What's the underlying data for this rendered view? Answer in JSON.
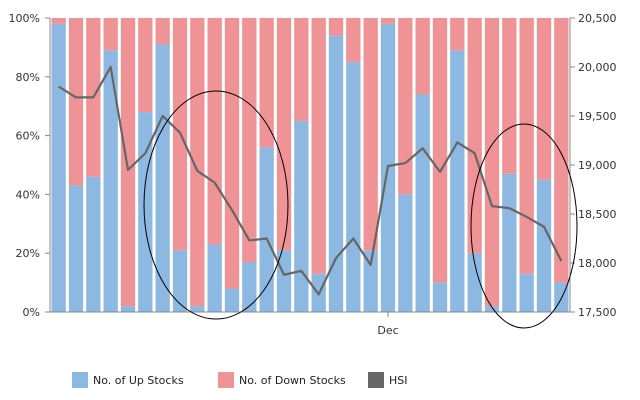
{
  "chart_data": {
    "type": "bar",
    "stacked_percent": true,
    "x": {
      "tick_labels": [
        "Dec"
      ],
      "tick_at_bar_index": 19
    },
    "y_left": {
      "ticks": [
        "0%",
        "20%",
        "40%",
        "60%",
        "80%",
        "100%"
      ],
      "ylim": [
        0,
        100
      ]
    },
    "y_right": {
      "ticks": [
        "17,500",
        "18,000",
        "18,500",
        "19,000",
        "19,500",
        "20,000",
        "20,500"
      ],
      "ylim": [
        17500,
        20500
      ]
    },
    "series": [
      {
        "name": "No. of Up Stocks",
        "color": "#8cb8e2",
        "axis": "left",
        "kind": "bar",
        "values": [
          98,
          43,
          46,
          89,
          2,
          68,
          91,
          21,
          2,
          23,
          8,
          17,
          56,
          21,
          65,
          13,
          94,
          85,
          21,
          98,
          40,
          74,
          10,
          89,
          20,
          2,
          47,
          13,
          45,
          10
        ]
      },
      {
        "name": "No. of Down Stocks",
        "color": "#ef9396",
        "axis": "left",
        "kind": "bar",
        "values": [
          2,
          57,
          54,
          11,
          98,
          32,
          9,
          79,
          98,
          77,
          92,
          83,
          44,
          79,
          35,
          87,
          6,
          15,
          79,
          2,
          60,
          26,
          90,
          11,
          80,
          98,
          53,
          87,
          55,
          90
        ]
      },
      {
        "name": "HSI",
        "color": "#666666",
        "axis": "right",
        "kind": "line",
        "values": [
          19800,
          19690,
          19690,
          20000,
          18950,
          19120,
          19500,
          19330,
          18940,
          18820,
          18540,
          18230,
          18250,
          17880,
          17920,
          17680,
          18050,
          18250,
          17980,
          18990,
          19020,
          19170,
          18930,
          19230,
          19120,
          18580,
          18560,
          18470,
          18370,
          18020
        ]
      }
    ],
    "grid": false,
    "legend_position": "bottom-left"
  }
}
